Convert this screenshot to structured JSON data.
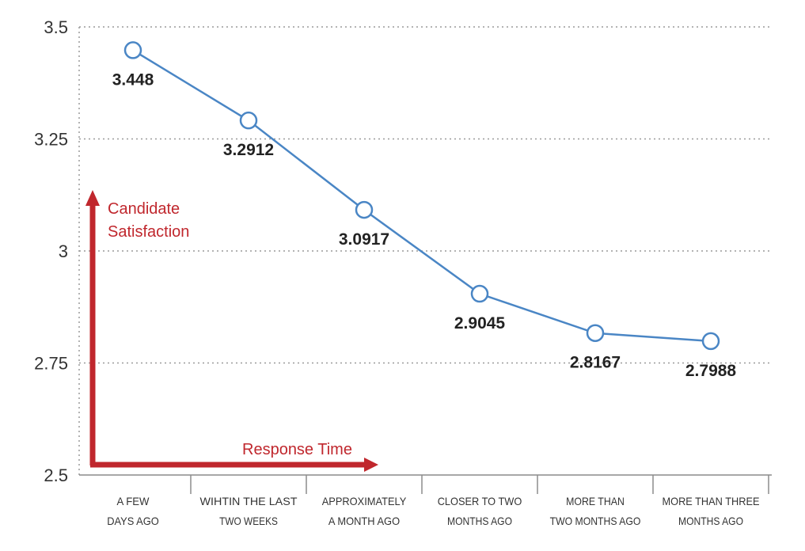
{
  "chart_data": {
    "type": "line",
    "categories": [
      [
        "A FEW",
        "DAYS AGO"
      ],
      [
        "WIHTIN THE LAST",
        "TWO WEEKS"
      ],
      [
        "APPROXIMATELY",
        "A MONTH AGO"
      ],
      [
        "CLOSER TO TWO",
        "MONTHS AGO"
      ],
      [
        "MORE THAN",
        "TWO MONTHS AGO"
      ],
      [
        "MORE THAN THREE",
        "MONTHS AGO"
      ]
    ],
    "series": [
      {
        "values": [
          3.448,
          3.2912,
          3.0917,
          2.9045,
          2.8167,
          2.7988
        ]
      }
    ],
    "data_labels": [
      "3.448",
      "3.2912",
      "3.0917",
      "2.9045",
      "2.8167",
      "2.7988"
    ],
    "y_ticks": [
      2.5,
      2.75,
      3,
      3.25,
      3.5
    ],
    "y_tick_labels": [
      "2.5",
      "2.75",
      "3",
      "3.25",
      "3.5"
    ],
    "ylim": [
      2.5,
      3.5
    ],
    "grid": true,
    "title": "",
    "xlabel": "",
    "ylabel": ""
  },
  "annotations": {
    "y_arrow_label_line1": "Candidate",
    "y_arrow_label_line2": "Satisfaction",
    "x_arrow_label": "Response Time"
  },
  "colors": {
    "line": "#4a86c5",
    "arrow": "#c0272d",
    "grid": "#9a9a9a",
    "axis": "#8c8c8c"
  }
}
